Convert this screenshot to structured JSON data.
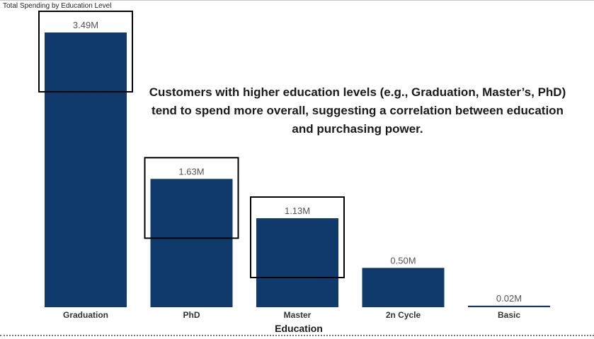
{
  "chart_data": {
    "type": "bar",
    "title": "Total Spending by Education Level",
    "xlabel": "Education",
    "ylabel": "",
    "categories": [
      "Graduation",
      "PhD",
      "Master",
      "2n Cycle",
      "Basic"
    ],
    "values": [
      3.49,
      1.63,
      1.13,
      0.5,
      0.02
    ],
    "value_labels": [
      "3.49M",
      "1.63M",
      "1.13M",
      "0.50M",
      "0.02M"
    ],
    "value_unit": "M",
    "ylim": [
      0,
      3.49
    ],
    "grid": false,
    "legend": "none",
    "highlighted_categories": [
      "Graduation",
      "PhD",
      "Master"
    ],
    "annotation": "Customers with higher education levels (e.g., Graduation, Master’s, PhD) tend to spend more overall, suggesting a correlation between education and purchasing power.",
    "colors": {
      "bar": "#0f3a6b",
      "highlight_box": "#000000"
    }
  }
}
